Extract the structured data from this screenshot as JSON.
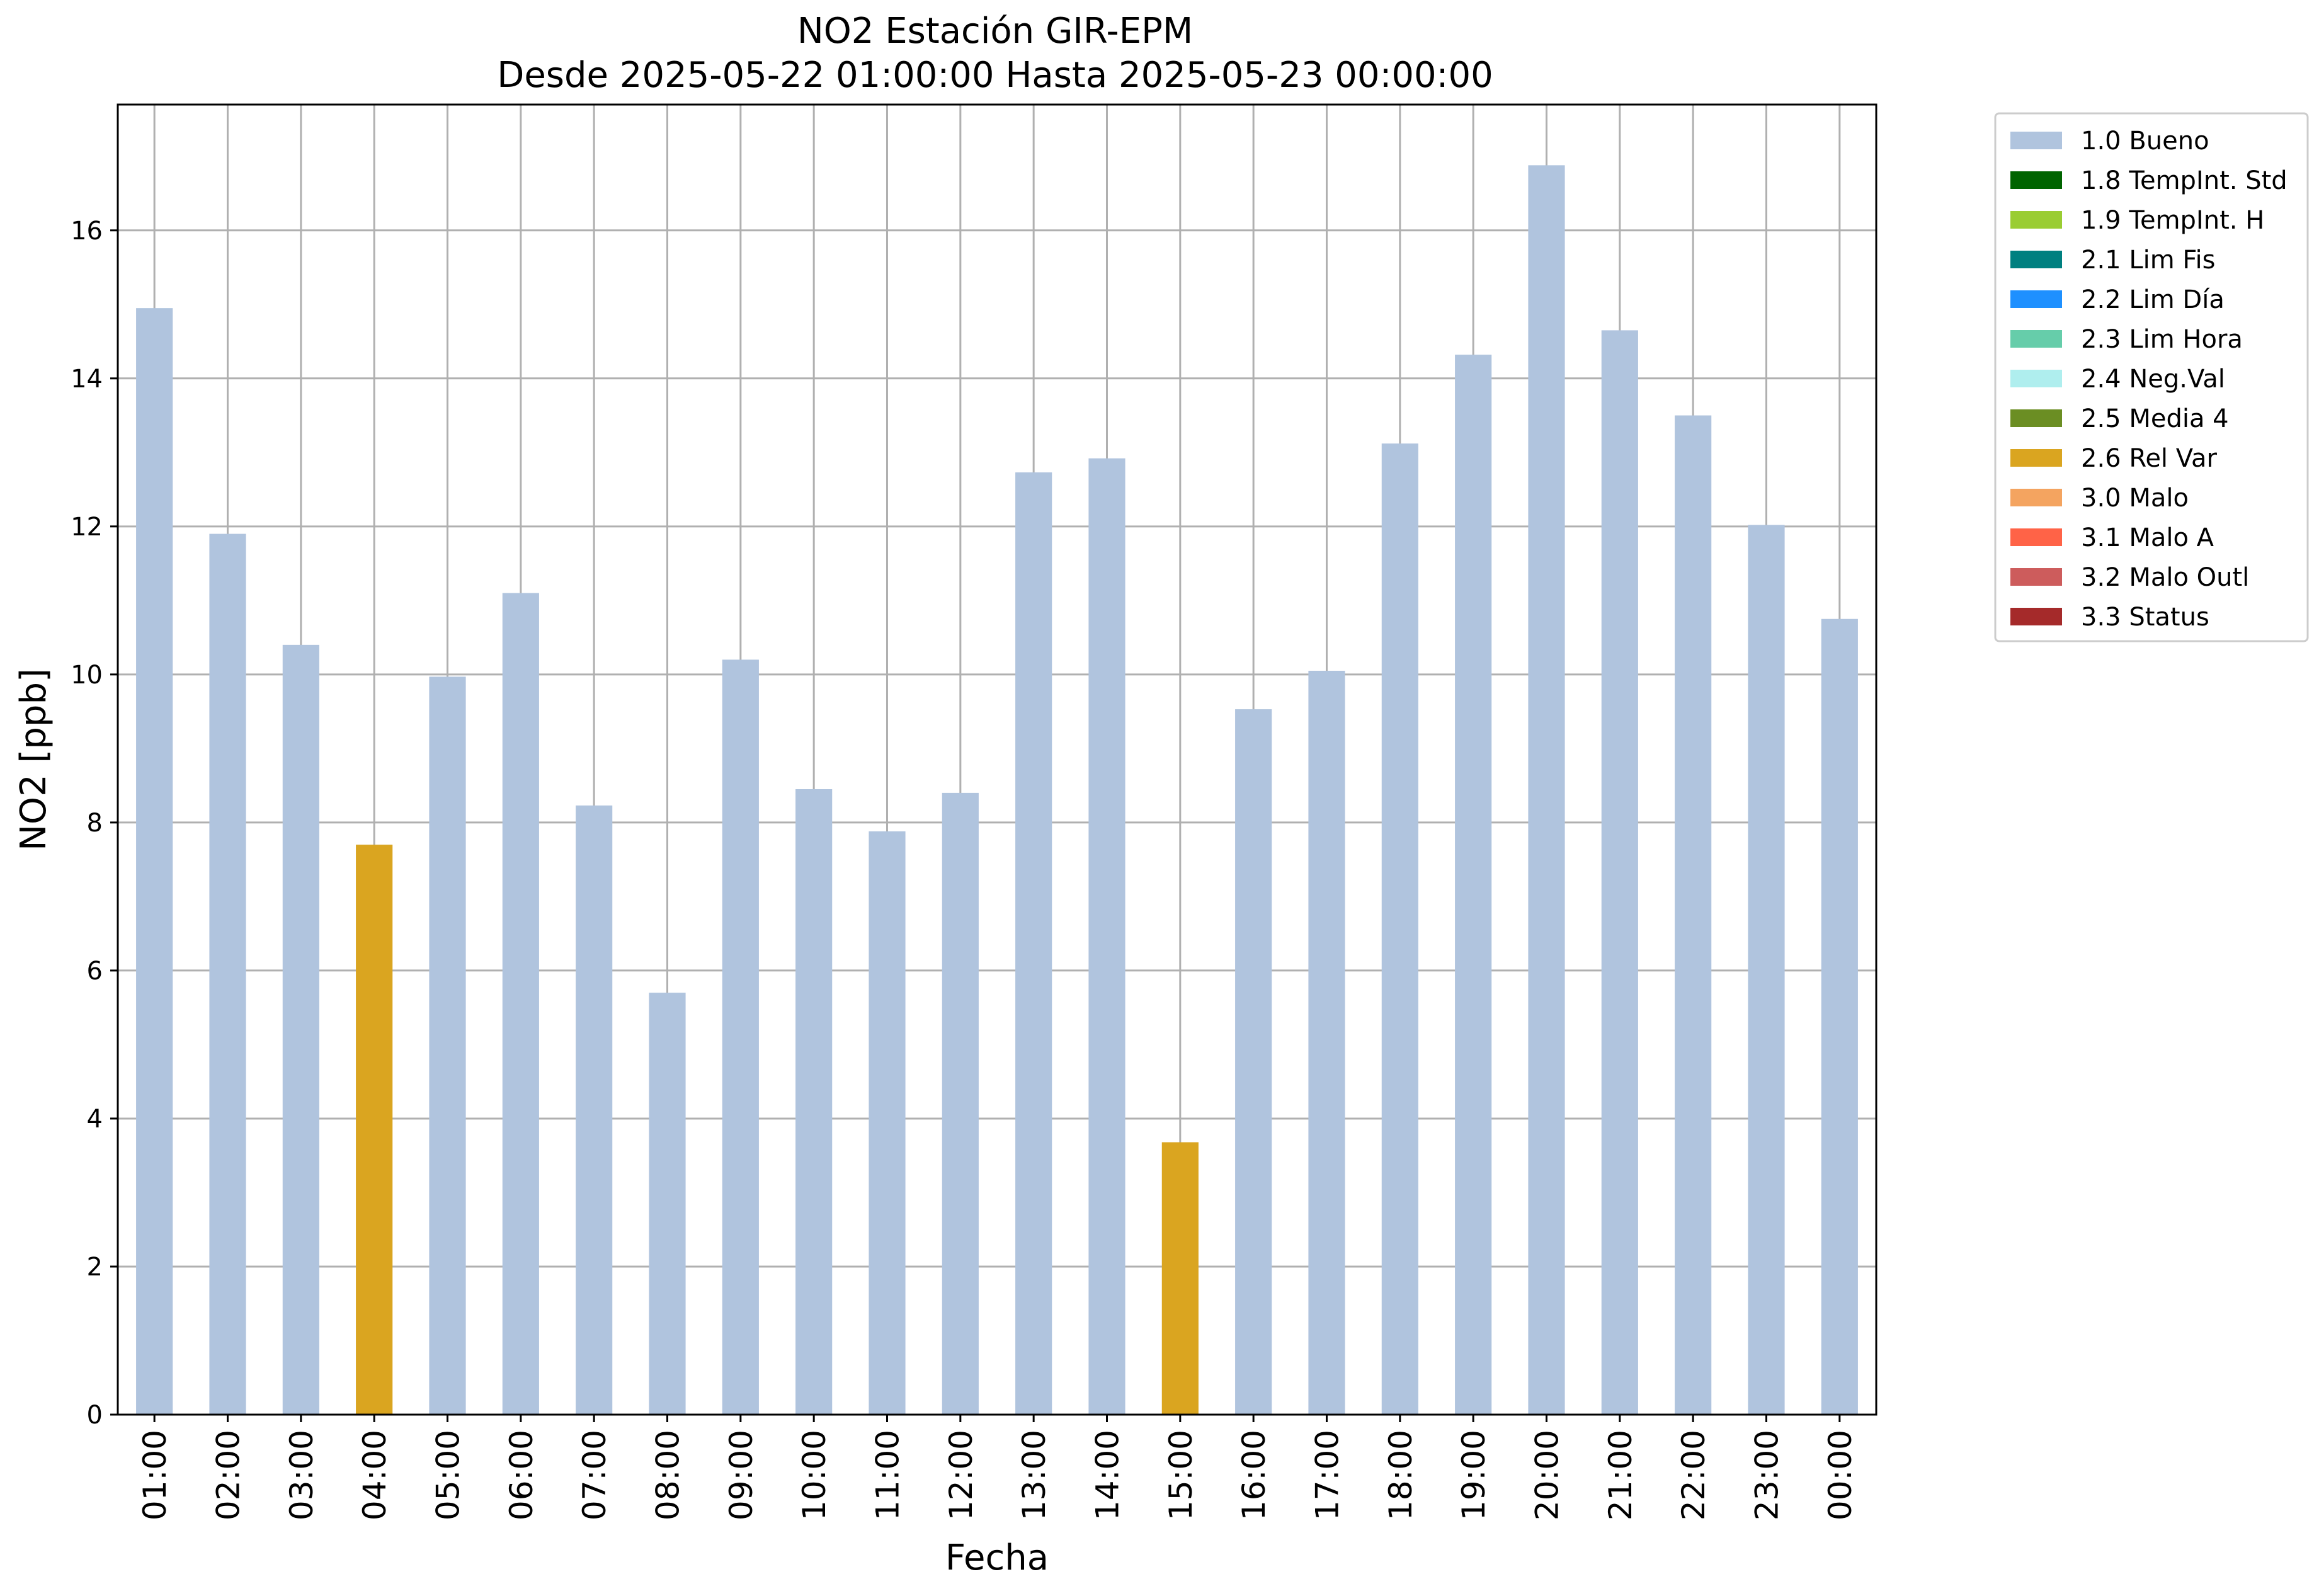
{
  "chart_data": {
    "type": "bar",
    "title": "NO2 Estación GIR-EPM",
    "subtitle": "Desde 2025-05-22 01:00:00 Hasta 2025-05-23 00:00:00",
    "xlabel": "Fecha",
    "ylabel": "NO2 [ppb]",
    "ylim": [
      0,
      17.7
    ],
    "yticks": [
      0,
      2,
      4,
      6,
      8,
      10,
      12,
      14,
      16
    ],
    "grid": true,
    "legend_placement": "outside-top-right",
    "categories": [
      "01:00",
      "02:00",
      "03:00",
      "04:00",
      "05:00",
      "06:00",
      "07:00",
      "08:00",
      "09:00",
      "10:00",
      "11:00",
      "12:00",
      "13:00",
      "14:00",
      "15:00",
      "16:00",
      "17:00",
      "18:00",
      "19:00",
      "20:00",
      "21:00",
      "22:00",
      "23:00",
      "00:00"
    ],
    "values": [
      14.95,
      11.9,
      10.4,
      7.7,
      9.97,
      11.1,
      8.23,
      5.7,
      10.2,
      8.45,
      7.88,
      8.4,
      12.73,
      12.92,
      3.68,
      9.53,
      10.05,
      13.12,
      14.32,
      16.88,
      14.65,
      13.5,
      12.02,
      10.75
    ],
    "flags": [
      "1.0 Bueno",
      "1.0 Bueno",
      "1.0 Bueno",
      "2.6 Rel Var",
      "1.0 Bueno",
      "1.0 Bueno",
      "1.0 Bueno",
      "1.0 Bueno",
      "1.0 Bueno",
      "1.0 Bueno",
      "1.0 Bueno",
      "1.0 Bueno",
      "1.0 Bueno",
      "1.0 Bueno",
      "2.6 Rel Var",
      "1.0 Bueno",
      "1.0 Bueno",
      "1.0 Bueno",
      "1.0 Bueno",
      "1.0 Bueno",
      "1.0 Bueno",
      "1.0 Bueno",
      "1.0 Bueno",
      "1.0 Bueno"
    ],
    "legend": [
      {
        "label": "1.0 Bueno",
        "color": "#b0c4de"
      },
      {
        "label": "1.8 TempInt. Std",
        "color": "#006400"
      },
      {
        "label": "1.9 TempInt. H",
        "color": "#9acd32"
      },
      {
        "label": "2.1 Lim Fis",
        "color": "#008080"
      },
      {
        "label": "2.2 Lim Día",
        "color": "#1e90ff"
      },
      {
        "label": "2.3 Lim Hora",
        "color": "#66cdaa"
      },
      {
        "label": "2.4 Neg.Val",
        "color": "#afeeee"
      },
      {
        "label": "2.5 Media 4",
        "color": "#6b8e23"
      },
      {
        "label": "2.6 Rel Var",
        "color": "#daa520"
      },
      {
        "label": "3.0 Malo",
        "color": "#f4a460"
      },
      {
        "label": "3.1 Malo A",
        "color": "#ff6347"
      },
      {
        "label": "3.2 Malo Outl",
        "color": "#cd5c5c"
      },
      {
        "label": "3.3 Status",
        "color": "#a52a2a"
      }
    ]
  }
}
